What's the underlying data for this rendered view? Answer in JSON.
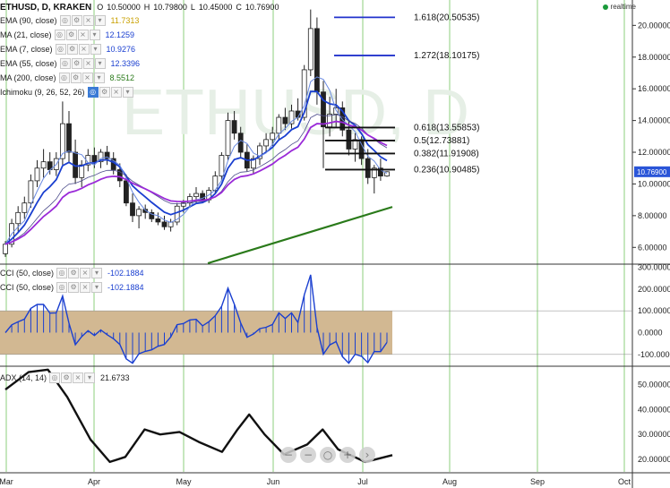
{
  "header": {
    "symbol": "ETHUSD, D, KRAKEN",
    "o_label": "O",
    "o_value": "10.50000",
    "h_label": "H",
    "h_value": "10.79800",
    "l_label": "L",
    "l_value": "10.45000",
    "c_label": "C",
    "c_value": "10.76900",
    "realtime": "realtime"
  },
  "indicators": [
    {
      "name": "EMA (90, close)",
      "value": "11.7313",
      "color": "#c9a000"
    },
    {
      "name": "MA (21, close)",
      "value": "12.1259",
      "color": "#1a3fd0"
    },
    {
      "name": "EMA (7, close)",
      "value": "10.9276",
      "color": "#1a3fd0"
    },
    {
      "name": "EMA (55, close)",
      "value": "12.3396",
      "color": "#1a3fd0"
    },
    {
      "name": "MA (200, close)",
      "value": "8.5512",
      "color": "#2a7a1a"
    },
    {
      "name": "Ichimoku (9, 26, 52, 26)",
      "value": "",
      "color": "#222"
    }
  ],
  "cci_rows": [
    {
      "name": "CCI (50, close)",
      "value": "-102.1884"
    },
    {
      "name": "CCI (50, close)",
      "value": "-102.1884"
    }
  ],
  "adx_row": {
    "name": "ADX (14, 14)",
    "value": "21.6733"
  },
  "watermark": "ETHUSD, D",
  "price_label": "10.76900",
  "price_axis": [
    "20.00000",
    "18.00000",
    "16.00000",
    "14.00000",
    "12.00000",
    "10.00000",
    "8.00000",
    "6.00000"
  ],
  "cci_axis": [
    "300.0000",
    "200.0000",
    "100.0000",
    "0.0000",
    "-100.0000"
  ],
  "adx_axis": [
    "50.00000",
    "40.00000",
    "30.00000",
    "20.00000"
  ],
  "time_axis": [
    "Mar",
    "Apr",
    "May",
    "Jun",
    "Jul",
    "Aug",
    "Sep",
    "Oct"
  ],
  "fib_levels": [
    {
      "label": "1.618(20.50535)",
      "price": 20.50535,
      "color": "#2233cc"
    },
    {
      "label": "1.272(18.10175)",
      "price": 18.10175,
      "color": "#2233cc"
    },
    {
      "label": "0.618(13.55853)",
      "price": 13.55853,
      "color": "#111111"
    },
    {
      "label": "0.5(12.73881)",
      "price": 12.73881,
      "color": "#111111"
    },
    {
      "label": "0.382(11.91908)",
      "price": 11.91908,
      "color": "#111111"
    },
    {
      "label": "0.236(10.90485)",
      "price": 10.90485,
      "color": "#111111"
    }
  ],
  "zoom_controls": [
    "−",
    "−",
    "○",
    "+",
    "›"
  ],
  "colors": {
    "grid": "#8ccf7e",
    "bull": "#ffffff",
    "bear": "#222222",
    "ema_blue": "#1a3fd0",
    "ma_purple": "#9a2ad8",
    "ma200": "#2a7a1a",
    "cci_band": "#d2b892",
    "price_box": "#2a55d8"
  },
  "chart_data": {
    "type": "candlestick",
    "series": [
      {
        "name": "ETHUSD",
        "ohlc": [
          [
            5.6,
            6.4,
            5.4,
            6.2
          ],
          [
            6.2,
            7.8,
            6.0,
            7.5
          ],
          [
            7.5,
            8.6,
            7.0,
            8.2
          ],
          [
            8.2,
            9.2,
            7.8,
            8.8
          ],
          [
            8.8,
            10.6,
            8.5,
            10.2
          ],
          [
            10.2,
            11.5,
            9.8,
            11.0
          ],
          [
            11.0,
            12.2,
            10.4,
            11.4
          ],
          [
            11.4,
            12.0,
            10.6,
            10.9
          ],
          [
            10.9,
            12.0,
            10.5,
            11.6
          ],
          [
            11.6,
            15.2,
            11.2,
            13.8
          ],
          [
            13.8,
            14.6,
            11.4,
            12.0
          ],
          [
            12.0,
            12.8,
            10.0,
            10.4
          ],
          [
            10.4,
            11.5,
            9.8,
            11.2
          ],
          [
            11.2,
            12.2,
            10.8,
            11.8
          ],
          [
            11.8,
            12.3,
            11.0,
            11.4
          ],
          [
            11.4,
            12.2,
            11.0,
            12.0
          ],
          [
            12.0,
            12.4,
            11.2,
            11.6
          ],
          [
            11.6,
            12.0,
            10.6,
            10.9
          ],
          [
            10.9,
            11.3,
            9.8,
            10.2
          ],
          [
            10.2,
            10.6,
            8.6,
            8.8
          ],
          [
            8.8,
            9.4,
            7.6,
            8.0
          ],
          [
            8.0,
            8.6,
            7.2,
            8.4
          ],
          [
            8.4,
            8.7,
            7.8,
            8.2
          ],
          [
            8.2,
            8.4,
            7.6,
            7.8
          ],
          [
            7.8,
            8.2,
            7.4,
            7.6
          ],
          [
            7.6,
            8.0,
            7.1,
            7.3
          ],
          [
            7.3,
            7.8,
            7.0,
            7.6
          ],
          [
            7.6,
            8.8,
            7.4,
            8.6
          ],
          [
            8.6,
            9.0,
            8.2,
            8.8
          ],
          [
            8.8,
            9.4,
            8.5,
            9.2
          ],
          [
            9.2,
            9.8,
            8.8,
            9.4
          ],
          [
            9.4,
            9.6,
            8.8,
            9.0
          ],
          [
            9.0,
            9.8,
            8.8,
            9.6
          ],
          [
            9.6,
            10.8,
            9.4,
            10.5
          ],
          [
            10.5,
            12.0,
            10.2,
            11.8
          ],
          [
            11.8,
            14.5,
            11.5,
            14.0
          ],
          [
            14.0,
            14.6,
            12.8,
            13.2
          ],
          [
            13.2,
            13.6,
            11.6,
            12.0
          ],
          [
            12.0,
            12.5,
            10.8,
            11.0
          ],
          [
            11.0,
            11.8,
            10.6,
            11.6
          ],
          [
            11.6,
            12.6,
            11.2,
            12.4
          ],
          [
            12.4,
            13.2,
            12.0,
            12.8
          ],
          [
            12.8,
            13.6,
            12.4,
            13.2
          ],
          [
            13.2,
            14.4,
            12.8,
            14.2
          ],
          [
            14.2,
            14.8,
            13.4,
            13.8
          ],
          [
            13.8,
            15.0,
            13.5,
            14.6
          ],
          [
            14.6,
            15.4,
            14.0,
            14.2
          ],
          [
            14.2,
            17.5,
            14.0,
            17.2
          ],
          [
            17.2,
            21.0,
            16.8,
            19.8
          ],
          [
            19.8,
            20.5,
            15.0,
            15.8
          ],
          [
            15.8,
            16.5,
            11.0,
            13.6
          ],
          [
            13.6,
            15.5,
            13.0,
            14.4
          ],
          [
            14.4,
            16.0,
            13.6,
            14.8
          ],
          [
            14.8,
            15.2,
            13.0,
            13.4
          ],
          [
            13.4,
            14.0,
            11.8,
            12.2
          ],
          [
            12.2,
            13.2,
            11.4,
            12.8
          ],
          [
            12.8,
            13.0,
            11.2,
            11.6
          ],
          [
            11.6,
            12.2,
            10.0,
            10.4
          ],
          [
            10.4,
            11.2,
            9.4,
            11.0
          ],
          [
            11.0,
            11.6,
            10.2,
            10.5
          ],
          [
            10.5,
            10.8,
            10.45,
            10.769
          ]
        ]
      }
    ],
    "series_lines": [
      {
        "name": "EMA (7, close)",
        "color": "#1a3fd0"
      },
      {
        "name": "MA (21, close)",
        "color": "#1a3fd0"
      },
      {
        "name": "EMA (55, close)",
        "color": "#1a3fd0"
      },
      {
        "name": "EMA (90, close)",
        "color": "#9a2ad8"
      },
      {
        "name": "MA (200, close)",
        "color": "#2a7a1a",
        "x": [
          0.45,
          1.0
        ],
        "y": [
          5.0,
          8.55
        ]
      }
    ],
    "ylim": [
      5.0,
      21.6
    ],
    "yscale": "linear",
    "cci": {
      "ylim": [
        -150,
        310
      ],
      "band": [
        -100,
        100
      ]
    },
    "adx": {
      "ylim": [
        15,
        57
      ]
    },
    "time_labels": [
      "Mar",
      "Apr",
      "May",
      "Jun",
      "Jul",
      "Aug",
      "Sep",
      "Oct"
    ]
  }
}
